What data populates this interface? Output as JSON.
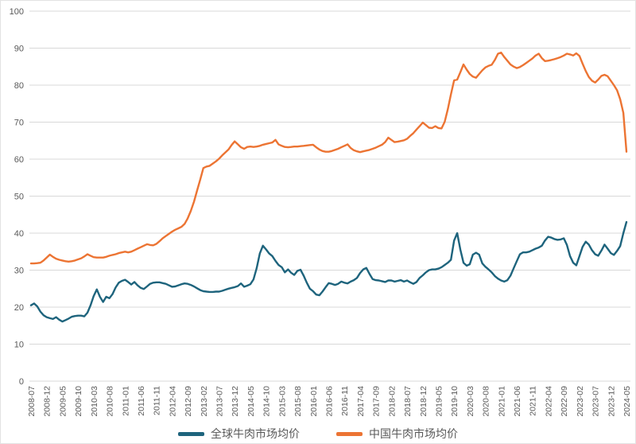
{
  "chart": {
    "background": "#FFFFFF",
    "grid_color": "#D9D9D9",
    "tick_label_color": "#595959",
    "legend_text_color": "#595959"
  },
  "chart_data": {
    "type": "line",
    "title": "",
    "xlabel": "",
    "ylabel": "",
    "x_frequency": "monthly",
    "x_range": [
      "2008-07",
      "2024-05"
    ],
    "x_tick_labels": [
      "2008-07",
      "2008-12",
      "2009-05",
      "2009-10",
      "2010-03",
      "2010-08",
      "2011-01",
      "2011-06",
      "2011-11",
      "2012-04",
      "2012-09",
      "2013-02",
      "2013-07",
      "2013-12",
      "2014-05",
      "2014-10",
      "2015-03",
      "2015-08",
      "2016-01",
      "2016-06",
      "2016-11",
      "2017-04",
      "2017-09",
      "2018-02",
      "2018-07",
      "2018-12",
      "2019-05",
      "2019-10",
      "2020-03",
      "2020-08",
      "2021-01",
      "2021-06",
      "2021-11",
      "2022-04",
      "2022-09",
      "2023-02",
      "2023-07",
      "2023-12",
      "2024-05"
    ],
    "x_tick_month_step": 5,
    "y_ticks": [
      0,
      10,
      20,
      30,
      40,
      50,
      60,
      70,
      80,
      90,
      100
    ],
    "ylim": [
      0,
      100
    ],
    "grid": "horizontal",
    "legend_position": "bottom",
    "series": [
      {
        "name": "全球牛肉市场均价",
        "color": "#1E647D",
        "values": [
          20.5,
          21.0,
          20.2,
          18.8,
          17.8,
          17.3,
          17.0,
          16.8,
          17.3,
          16.6,
          16.1,
          16.5,
          16.9,
          17.4,
          17.6,
          17.7,
          17.7,
          17.5,
          18.5,
          20.5,
          23.0,
          24.8,
          22.8,
          21.4,
          22.8,
          22.4,
          23.5,
          25.3,
          26.6,
          27.1,
          27.4,
          26.8,
          26.1,
          26.8,
          25.9,
          25.2,
          24.9,
          25.6,
          26.3,
          26.6,
          26.7,
          26.7,
          26.5,
          26.3,
          25.9,
          25.5,
          25.6,
          25.9,
          26.2,
          26.4,
          26.3,
          26.0,
          25.6,
          25.1,
          24.6,
          24.3,
          24.2,
          24.1,
          24.1,
          24.2,
          24.2,
          24.4,
          24.7,
          25.0,
          25.2,
          25.4,
          25.7,
          26.4,
          25.5,
          25.8,
          26.2,
          27.5,
          30.5,
          34.5,
          36.6,
          35.6,
          34.5,
          33.8,
          32.5,
          31.4,
          30.8,
          29.4,
          30.2,
          29.3,
          28.7,
          29.8,
          30.1,
          28.5,
          26.6,
          25.0,
          24.3,
          23.4,
          23.2,
          24.2,
          25.4,
          26.5,
          26.3,
          26.0,
          26.3,
          26.9,
          26.6,
          26.4,
          26.9,
          27.3,
          27.9,
          29.2,
          30.2,
          30.6,
          29.0,
          27.6,
          27.3,
          27.2,
          27.0,
          26.8,
          27.2,
          27.2,
          26.9,
          27.1,
          27.3,
          26.9,
          27.2,
          26.7,
          26.3,
          26.8,
          27.9,
          28.6,
          29.4,
          30.0,
          30.2,
          30.2,
          30.4,
          30.8,
          31.4,
          32.0,
          32.8,
          38.0,
          40.0,
          35.5,
          32.0,
          31.2,
          31.6,
          34.2,
          34.7,
          34.2,
          31.8,
          30.9,
          30.2,
          29.4,
          28.4,
          27.7,
          27.2,
          26.9,
          27.3,
          28.5,
          30.5,
          32.4,
          34.3,
          34.8,
          34.8,
          35.0,
          35.4,
          35.8,
          36.1,
          36.6,
          38.0,
          39.0,
          38.8,
          38.4,
          38.2,
          38.3,
          38.6,
          36.8,
          33.8,
          32.0,
          31.3,
          33.8,
          36.3,
          37.7,
          36.9,
          35.4,
          34.3,
          33.9,
          35.3,
          36.9,
          35.8,
          34.6,
          34.1,
          35.2,
          36.5,
          40.0,
          43.0
        ]
      },
      {
        "name": "中国牛肉市场均价",
        "color": "#EC7433",
        "values": [
          31.8,
          31.8,
          31.9,
          32.0,
          32.6,
          33.4,
          34.2,
          33.6,
          33.1,
          32.8,
          32.6,
          32.4,
          32.3,
          32.4,
          32.6,
          32.9,
          33.2,
          33.7,
          34.3,
          33.9,
          33.5,
          33.4,
          33.4,
          33.4,
          33.6,
          33.9,
          34.1,
          34.3,
          34.6,
          34.8,
          35.0,
          34.8,
          35.0,
          35.4,
          35.8,
          36.2,
          36.6,
          37.0,
          36.8,
          36.7,
          37.1,
          37.8,
          38.6,
          39.2,
          39.8,
          40.4,
          40.9,
          41.3,
          41.7,
          42.5,
          44.0,
          46.0,
          48.5,
          51.5,
          54.5,
          57.6,
          58.0,
          58.2,
          58.8,
          59.4,
          60.1,
          61.0,
          61.8,
          62.6,
          63.8,
          64.8,
          64.0,
          63.2,
          62.8,
          63.3,
          63.4,
          63.3,
          63.4,
          63.6,
          63.9,
          64.1,
          64.3,
          64.5,
          65.2,
          64.0,
          63.6,
          63.3,
          63.2,
          63.3,
          63.4,
          63.4,
          63.5,
          63.6,
          63.7,
          63.8,
          63.9,
          63.2,
          62.6,
          62.2,
          62.0,
          62.0,
          62.2,
          62.5,
          62.8,
          63.2,
          63.6,
          64.0,
          63.0,
          62.4,
          62.1,
          61.9,
          62.1,
          62.3,
          62.5,
          62.8,
          63.1,
          63.5,
          63.9,
          64.6,
          65.8,
          65.2,
          64.6,
          64.7,
          64.9,
          65.1,
          65.5,
          66.3,
          67.0,
          68.0,
          68.9,
          69.9,
          69.2,
          68.5,
          68.4,
          68.9,
          68.4,
          68.3,
          70.1,
          73.5,
          77.5,
          81.3,
          81.5,
          83.5,
          85.6,
          84.2,
          83.0,
          82.3,
          82.0,
          83.0,
          84.0,
          84.8,
          85.2,
          85.5,
          86.8,
          88.5,
          88.8,
          87.6,
          86.6,
          85.6,
          85.0,
          84.6,
          84.9,
          85.4,
          86.0,
          86.6,
          87.2,
          88.0,
          88.5,
          87.3,
          86.5,
          86.6,
          86.8,
          87.0,
          87.3,
          87.6,
          88.0,
          88.5,
          88.3,
          88.0,
          88.6,
          87.9,
          85.8,
          83.8,
          82.2,
          81.2,
          80.7,
          81.5,
          82.5,
          82.8,
          82.4,
          81.2,
          80.0,
          78.6,
          76.2,
          72.5,
          62.0
        ]
      }
    ]
  }
}
